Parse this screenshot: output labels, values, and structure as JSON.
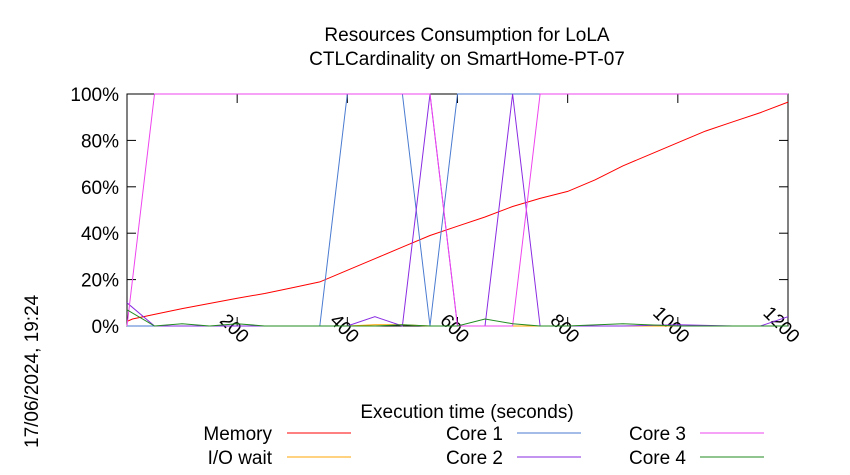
{
  "chart_data": {
    "type": "line",
    "title": "Resources Consumption for LoLA",
    "subtitle": "CTLCardinality on SmartHome-PT-07",
    "xlabel": "Execution time (seconds)",
    "ylabel": "",
    "xlim": [
      0,
      1200
    ],
    "ylim": [
      0,
      100
    ],
    "x_ticks": [
      200,
      400,
      600,
      800,
      1000,
      1200
    ],
    "y_ticks": [
      0,
      20,
      40,
      60,
      80,
      100
    ],
    "x_tick_labels": [
      "200",
      "400",
      "600",
      "800",
      "1000",
      "1200"
    ],
    "y_tick_labels": [
      "0%",
      "20%",
      "40%",
      "60%",
      "80%",
      "100%"
    ],
    "timestamp": "17/06/2024, 19:24",
    "grid": false,
    "legend_position": "bottom",
    "series": [
      {
        "name": "Memory",
        "color": "#ff0000",
        "points": [
          [
            0,
            2
          ],
          [
            10,
            3
          ],
          [
            50,
            5
          ],
          [
            100,
            7.5
          ],
          [
            200,
            12
          ],
          [
            250,
            14
          ],
          [
            300,
            16.5
          ],
          [
            350,
            19
          ],
          [
            400,
            24
          ],
          [
            450,
            29
          ],
          [
            500,
            34
          ],
          [
            550,
            39
          ],
          [
            600,
            43
          ],
          [
            650,
            47
          ],
          [
            700,
            51.5
          ],
          [
            750,
            55
          ],
          [
            800,
            58
          ],
          [
            850,
            63
          ],
          [
            900,
            69
          ],
          [
            950,
            74
          ],
          [
            1000,
            79
          ],
          [
            1050,
            84
          ],
          [
            1100,
            88
          ],
          [
            1150,
            92
          ],
          [
            1200,
            96.5
          ]
        ]
      },
      {
        "name": "I/O wait",
        "color": "#ffa500",
        "points": [
          [
            0,
            0
          ],
          [
            50,
            0
          ],
          [
            100,
            0
          ],
          [
            200,
            0
          ],
          [
            300,
            0
          ],
          [
            400,
            0
          ],
          [
            450,
            0.5
          ],
          [
            500,
            0.5
          ],
          [
            550,
            0
          ],
          [
            600,
            0
          ],
          [
            700,
            0
          ],
          [
            800,
            0
          ],
          [
            900,
            0
          ],
          [
            1000,
            0
          ],
          [
            1100,
            0
          ],
          [
            1200,
            0
          ]
        ]
      },
      {
        "name": "Core 1",
        "color": "#4a7bd0",
        "points": [
          [
            0,
            0
          ],
          [
            50,
            0
          ],
          [
            100,
            0
          ],
          [
            200,
            0
          ],
          [
            300,
            0
          ],
          [
            350,
            0
          ],
          [
            400,
            100
          ],
          [
            450,
            100
          ],
          [
            500,
            100
          ],
          [
            550,
            0
          ],
          [
            600,
            100
          ],
          [
            650,
            100
          ],
          [
            700,
            100
          ],
          [
            750,
            100
          ],
          [
            800,
            100
          ],
          [
            900,
            100
          ],
          [
            1000,
            100
          ],
          [
            1100,
            100
          ],
          [
            1200,
            100
          ]
        ]
      },
      {
        "name": "Core 2",
        "color": "#8a2be2",
        "points": [
          [
            0,
            10
          ],
          [
            50,
            0
          ],
          [
            100,
            0
          ],
          [
            200,
            0
          ],
          [
            300,
            0
          ],
          [
            400,
            0
          ],
          [
            450,
            4
          ],
          [
            500,
            0
          ],
          [
            550,
            100
          ],
          [
            600,
            0
          ],
          [
            650,
            0
          ],
          [
            700,
            100
          ],
          [
            750,
            0
          ],
          [
            800,
            0
          ],
          [
            900,
            0
          ],
          [
            1000,
            0.5
          ],
          [
            1100,
            0
          ],
          [
            1150,
            0
          ],
          [
            1200,
            4
          ]
        ]
      },
      {
        "name": "Core 3",
        "color": "#ee44ee",
        "points": [
          [
            0,
            0
          ],
          [
            50,
            100
          ],
          [
            100,
            100
          ],
          [
            200,
            100
          ],
          [
            300,
            100
          ],
          [
            400,
            100
          ],
          [
            500,
            100
          ],
          [
            550,
            100
          ],
          [
            600,
            0
          ],
          [
            650,
            0
          ],
          [
            700,
            0
          ],
          [
            750,
            100
          ],
          [
            800,
            100
          ],
          [
            900,
            100
          ],
          [
            1000,
            100
          ],
          [
            1100,
            100
          ],
          [
            1200,
            100
          ]
        ]
      },
      {
        "name": "Core 4",
        "color": "#228b22",
        "points": [
          [
            0,
            7
          ],
          [
            50,
            0
          ],
          [
            100,
            1
          ],
          [
            150,
            0
          ],
          [
            200,
            1
          ],
          [
            250,
            0
          ],
          [
            300,
            0
          ],
          [
            350,
            0
          ],
          [
            400,
            0
          ],
          [
            450,
            0
          ],
          [
            500,
            0.5
          ],
          [
            550,
            0
          ],
          [
            600,
            0
          ],
          [
            650,
            3
          ],
          [
            700,
            1
          ],
          [
            750,
            0
          ],
          [
            800,
            0
          ],
          [
            900,
            1
          ],
          [
            1000,
            0
          ],
          [
            1100,
            0
          ],
          [
            1200,
            0
          ]
        ]
      }
    ]
  }
}
